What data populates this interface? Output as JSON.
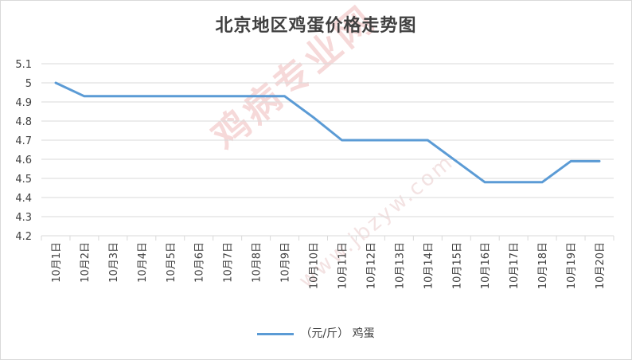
{
  "chart_data": {
    "type": "line",
    "title": "北京地区鸡蛋价格走势图",
    "categories": [
      "10月1日",
      "10月2日",
      "10月3日",
      "10月4日",
      "10月5日",
      "10月6日",
      "10月7日",
      "10月8日",
      "10月9日",
      "10月10日",
      "10月11日",
      "10月12日",
      "10月13日",
      "10月14日",
      "10月15日",
      "10月16日",
      "10月17日",
      "10月18日",
      "10月19日",
      "10月20日"
    ],
    "series": [
      {
        "name": "（元/斤） 鸡蛋",
        "values": [
          5.0,
          4.93,
          4.93,
          4.93,
          4.93,
          4.93,
          4.93,
          4.93,
          4.93,
          4.82,
          4.7,
          4.7,
          4.7,
          4.7,
          4.59,
          4.48,
          4.48,
          4.48,
          4.59,
          4.59
        ]
      }
    ],
    "ylim": [
      4.2,
      5.1
    ],
    "yticks": [
      "4.2",
      "4.3",
      "4.4",
      "4.5",
      "4.6",
      "4.7",
      "4.8",
      "4.9",
      "5",
      "5.1"
    ],
    "xlabel": "",
    "ylabel": "",
    "grid": true,
    "legend": "bottom",
    "line_color": "#5b9bd5",
    "watermark": "鸡病专业网",
    "watermark_url": "www.jbzyw.com"
  }
}
